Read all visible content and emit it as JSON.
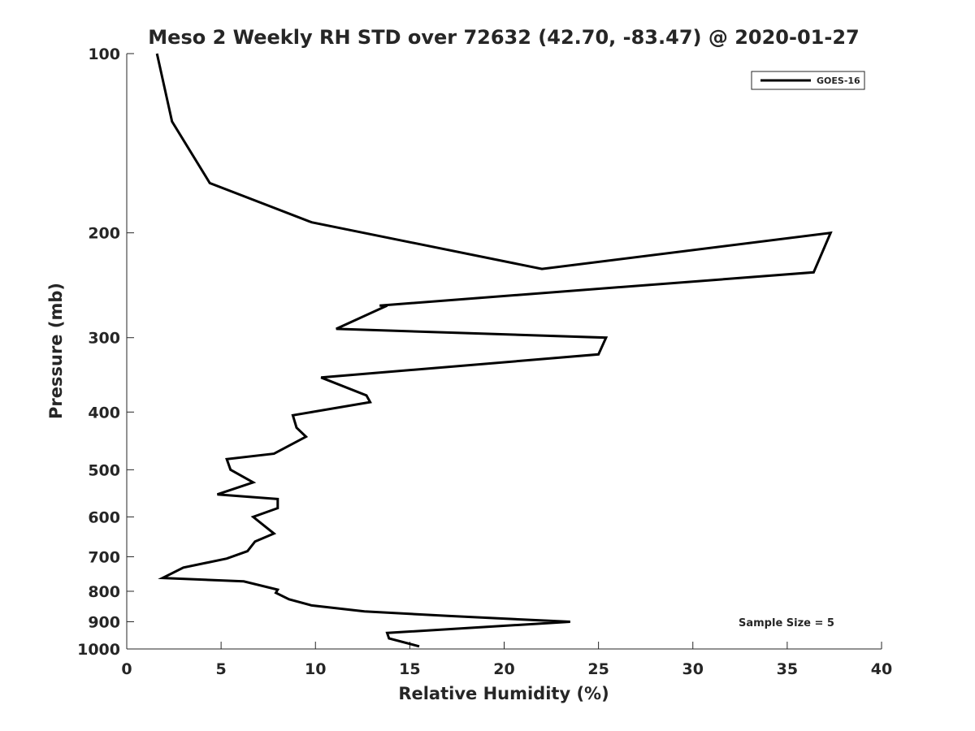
{
  "chart_data": {
    "type": "line",
    "title": "Meso 2 Weekly RH STD over 72632 (42.70, -83.47) @ 2020-01-27",
    "xlabel": "Relative Humidity (%)",
    "ylabel": "Pressure (mb)",
    "xlim": [
      0,
      40
    ],
    "ylim": [
      100,
      1000
    ],
    "yscale": "log",
    "y_reversed": true,
    "x_ticks": [
      "0",
      "5",
      "10",
      "15",
      "20",
      "25",
      "30",
      "35",
      "40"
    ],
    "y_ticks": [
      "100",
      "200",
      "300",
      "400",
      "500",
      "600",
      "700",
      "800",
      "900",
      "1000"
    ],
    "legend_position": "top-right",
    "annotation": "Sample Size = 5",
    "series": [
      {
        "name": "GOES-16",
        "color": "#000000",
        "x": [
          1.6,
          2.4,
          4.4,
          9.8,
          22.0,
          37.3,
          36.4,
          13.4,
          13.8,
          11.1,
          25.4,
          25.0,
          10.3,
          12.7,
          12.9,
          8.8,
          9.0,
          9.5,
          7.8,
          5.3,
          5.5,
          6.7,
          4.8,
          8.0,
          8.0,
          6.7,
          7.8,
          6.8,
          6.4,
          5.3,
          3.0,
          1.9,
          6.2,
          8.0,
          7.9,
          8.6,
          9.8,
          12.6,
          17.0,
          23.5,
          13.8,
          13.9,
          15.5
        ],
        "y": [
          100,
          130,
          165,
          192,
          230,
          200,
          233,
          265,
          265,
          290,
          300,
          320,
          350,
          375,
          385,
          405,
          425,
          440,
          470,
          480,
          500,
          525,
          550,
          560,
          580,
          600,
          640,
          660,
          685,
          705,
          730,
          760,
          770,
          795,
          805,
          825,
          845,
          865,
          880,
          900,
          940,
          960,
          990
        ]
      }
    ]
  }
}
